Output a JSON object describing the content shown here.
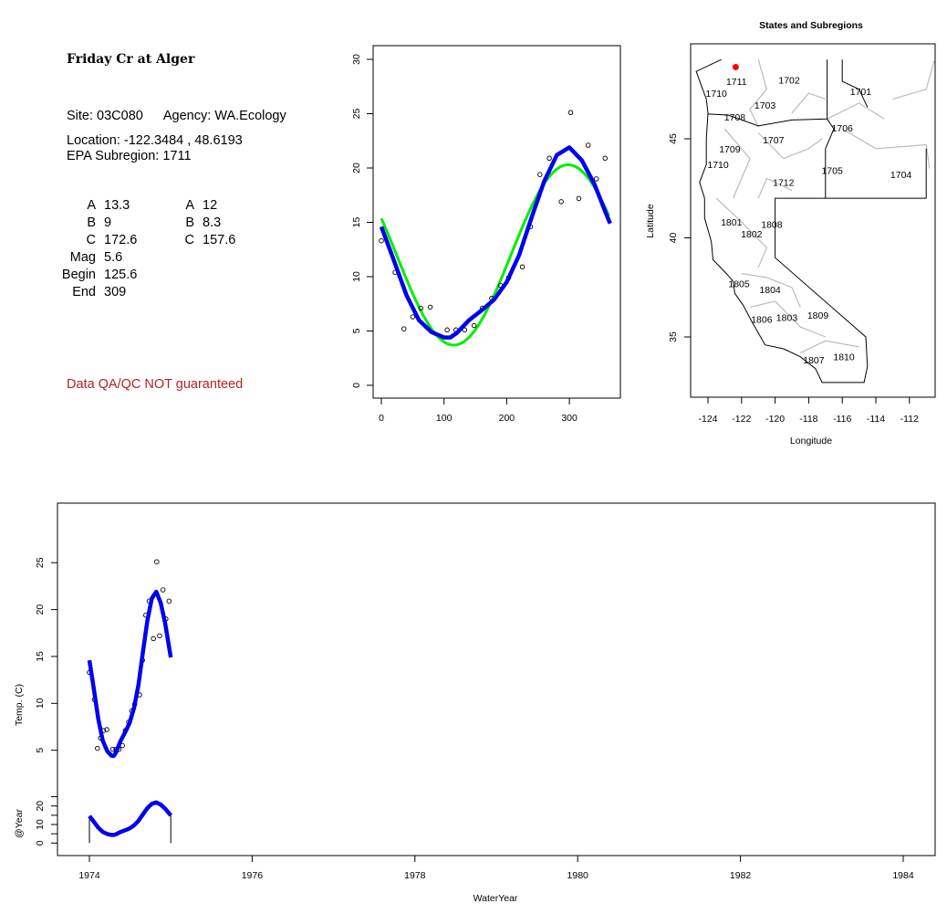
{
  "info": {
    "title": "Friday Cr at Alger",
    "site_label": "Site:",
    "site": "03C080",
    "agency_label": "Agency:",
    "agency": "WA.Ecology",
    "location_label": "Location:",
    "location": "-122.3484 , 48.6193",
    "subregion_label": "EPA Subregion:",
    "subregion": "1711",
    "params_left": [
      {
        "label": "A",
        "value": "13.3"
      },
      {
        "label": "B",
        "value": "9"
      },
      {
        "label": "C",
        "value": "172.6"
      },
      {
        "label": "Mag",
        "value": "5.6"
      },
      {
        "label": "Begin",
        "value": "125.6"
      },
      {
        "label": "End",
        "value": "309"
      }
    ],
    "params_right": [
      {
        "label": "A",
        "value": "12"
      },
      {
        "label": "B",
        "value": "8.3"
      },
      {
        "label": "C",
        "value": "157.6"
      }
    ],
    "warning": "Data QA/QC NOT guaranteed"
  },
  "chart_data": [
    {
      "type": "scatter",
      "title": "",
      "xlabel": "",
      "ylabel": "",
      "xlim": [
        -10,
        375
      ],
      "ylim": [
        -1,
        31
      ],
      "xticks": [
        "0",
        "100",
        "200",
        "300"
      ],
      "yticks": [
        "0",
        "5",
        "10",
        "15",
        "20",
        "25",
        "30"
      ],
      "points": {
        "x": [
          0,
          22,
          36,
          50,
          63,
          78,
          105,
          119,
          133,
          148,
          161,
          176,
          190,
          203,
          225,
          238,
          253,
          268,
          287,
          302,
          315,
          330,
          343,
          357
        ],
        "y": [
          13.3,
          10.4,
          5.2,
          6.3,
          7.1,
          7.2,
          5.1,
          5.1,
          5.1,
          5.5,
          7.1,
          8.0,
          9.2,
          9.9,
          10.9,
          14.6,
          19.4,
          20.9,
          16.9,
          25.1,
          17.2,
          22.1,
          19.0,
          20.9
        ]
      },
      "series": [
        {
          "color": "#00ee00",
          "kind": "harmonic",
          "mean": 12,
          "amplitude": 8.3,
          "peak_day": 298
        },
        {
          "color": "#0000ee",
          "kind": "smooth",
          "x": [
            0,
            20,
            40,
            60,
            80,
            100,
            110,
            120,
            140,
            160,
            180,
            200,
            220,
            240,
            260,
            280,
            300,
            320,
            340,
            360,
            365
          ],
          "y": [
            14.6,
            11.5,
            8.3,
            6.0,
            4.9,
            4.4,
            4.4,
            4.8,
            6.0,
            6.9,
            7.9,
            9.5,
            12.0,
            15.5,
            18.8,
            21.2,
            21.9,
            20.7,
            18.5,
            15.6,
            14.9
          ]
        }
      ]
    },
    {
      "type": "map",
      "title": "States and Subregions",
      "xlabel": "Longitude",
      "ylabel": "Latitude",
      "xticks": [
        "-124",
        "-122",
        "-120",
        "-118",
        "-116",
        "-114",
        "-112"
      ],
      "yticks": [
        "35",
        "40",
        "45"
      ],
      "site": {
        "lon": -122.3484,
        "lat": 48.6193,
        "color": "#ff0000"
      },
      "regions": [
        {
          "label": "1702",
          "lon": -119.16,
          "lat": 47.98
        },
        {
          "label": "1701",
          "lon": -114.9,
          "lat": 47.4
        },
        {
          "label": "1711",
          "lon": -122.3,
          "lat": 47.9
        },
        {
          "label": "1710",
          "lon": -123.5,
          "lat": 47.3
        },
        {
          "label": "1703",
          "lon": -120.6,
          "lat": 46.7
        },
        {
          "label": "1708",
          "lon": -122.4,
          "lat": 46.1
        },
        {
          "label": "1706",
          "lon": -116.0,
          "lat": 45.55
        },
        {
          "label": "1707",
          "lon": -120.1,
          "lat": 44.95
        },
        {
          "label": "1709",
          "lon": -122.7,
          "lat": 44.5
        },
        {
          "label": "1710",
          "lon": -123.4,
          "lat": 43.7
        },
        {
          "label": "1705",
          "lon": -116.6,
          "lat": 43.4
        },
        {
          "label": "1704",
          "lon": -112.5,
          "lat": 43.2
        },
        {
          "label": "1712",
          "lon": -119.5,
          "lat": 42.8
        },
        {
          "label": "1801",
          "lon": -122.6,
          "lat": 40.8
        },
        {
          "label": "1808",
          "lon": -120.2,
          "lat": 40.7
        },
        {
          "label": "1802",
          "lon": -121.4,
          "lat": 40.2
        },
        {
          "label": "1805",
          "lon": -122.15,
          "lat": 37.7
        },
        {
          "label": "1804",
          "lon": -120.3,
          "lat": 37.4
        },
        {
          "label": "1806",
          "lon": -120.8,
          "lat": 35.9
        },
        {
          "label": "1803",
          "lon": -119.3,
          "lat": 36.0
        },
        {
          "label": "1809",
          "lon": -117.45,
          "lat": 36.1
        },
        {
          "label": "1807",
          "lon": -117.7,
          "lat": 33.85
        },
        {
          "label": "1810",
          "lon": -115.9,
          "lat": 34.0
        }
      ]
    },
    {
      "type": "line",
      "xlabel": "WaterYear",
      "ylabel": "Temp. (C)",
      "ylabel2": "@Year",
      "xticks": [
        "1974",
        "1976",
        "1978",
        "1980",
        "1982",
        "1984"
      ],
      "yticks": [
        "5",
        "10",
        "15",
        "20",
        "25"
      ],
      "yticks2": [
        "0",
        "10",
        "20"
      ],
      "line_color": "#0000ee",
      "year_marks": [
        1974,
        1975
      ]
    }
  ]
}
